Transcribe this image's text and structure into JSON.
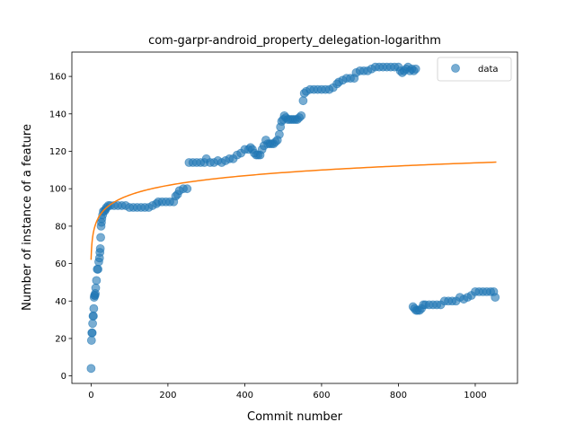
{
  "chart_data": {
    "type": "scatter",
    "title": "com-garpr-android_property_delegation-logarithm",
    "xlabel": "Commit number",
    "ylabel": "Number of instance of a feature",
    "xlim": [
      -50,
      1110
    ],
    "ylim": [
      -4,
      173
    ],
    "xticks": [
      0,
      200,
      400,
      600,
      800,
      1000
    ],
    "yticks": [
      0,
      20,
      40,
      60,
      80,
      100,
      120,
      140,
      160
    ],
    "legend": {
      "position": "top-right",
      "entries": [
        "data"
      ]
    },
    "colors": {
      "data": "#1f77b4",
      "fit": "#ff7f0e"
    },
    "series": [
      {
        "name": "data",
        "kind": "scatter",
        "points": [
          [
            0,
            4
          ],
          [
            1,
            19
          ],
          [
            2,
            23
          ],
          [
            3,
            23
          ],
          [
            4,
            28
          ],
          [
            5,
            32
          ],
          [
            6,
            32
          ],
          [
            7,
            36
          ],
          [
            8,
            42
          ],
          [
            9,
            43
          ],
          [
            10,
            43
          ],
          [
            11,
            44
          ],
          [
            12,
            47
          ],
          [
            14,
            51
          ],
          [
            16,
            57
          ],
          [
            18,
            57
          ],
          [
            20,
            61
          ],
          [
            22,
            63
          ],
          [
            23,
            66
          ],
          [
            24,
            68
          ],
          [
            25,
            74
          ],
          [
            26,
            80
          ],
          [
            27,
            82
          ],
          [
            28,
            84
          ],
          [
            30,
            86
          ],
          [
            32,
            88
          ],
          [
            35,
            88
          ],
          [
            38,
            89
          ],
          [
            40,
            90
          ],
          [
            45,
            91
          ],
          [
            50,
            91
          ],
          [
            60,
            91
          ],
          [
            70,
            91
          ],
          [
            80,
            91
          ],
          [
            90,
            91
          ],
          [
            100,
            90
          ],
          [
            110,
            90
          ],
          [
            120,
            90
          ],
          [
            130,
            90
          ],
          [
            140,
            90
          ],
          [
            150,
            90
          ],
          [
            160,
            91
          ],
          [
            170,
            92
          ],
          [
            175,
            93
          ],
          [
            185,
            93
          ],
          [
            195,
            93
          ],
          [
            205,
            93
          ],
          [
            215,
            93
          ],
          [
            220,
            96
          ],
          [
            225,
            97
          ],
          [
            230,
            99
          ],
          [
            240,
            100
          ],
          [
            250,
            100
          ],
          [
            255,
            114
          ],
          [
            265,
            114
          ],
          [
            275,
            114
          ],
          [
            285,
            114
          ],
          [
            295,
            114
          ],
          [
            300,
            116
          ],
          [
            310,
            114
          ],
          [
            320,
            114
          ],
          [
            330,
            115
          ],
          [
            340,
            114
          ],
          [
            350,
            115
          ],
          [
            360,
            116
          ],
          [
            370,
            116
          ],
          [
            380,
            118
          ],
          [
            390,
            119
          ],
          [
            400,
            121
          ],
          [
            410,
            121
          ],
          [
            415,
            122
          ],
          [
            420,
            121
          ],
          [
            425,
            119
          ],
          [
            430,
            118
          ],
          [
            435,
            118
          ],
          [
            440,
            118
          ],
          [
            445,
            121
          ],
          [
            450,
            123
          ],
          [
            455,
            126
          ],
          [
            460,
            124
          ],
          [
            465,
            124
          ],
          [
            470,
            124
          ],
          [
            475,
            124
          ],
          [
            480,
            125
          ],
          [
            485,
            126
          ],
          [
            490,
            129
          ],
          [
            493,
            133
          ],
          [
            496,
            136
          ],
          [
            500,
            137
          ],
          [
            503,
            139
          ],
          [
            507,
            138
          ],
          [
            512,
            137
          ],
          [
            517,
            137
          ],
          [
            522,
            137
          ],
          [
            527,
            137
          ],
          [
            532,
            137
          ],
          [
            537,
            137
          ],
          [
            542,
            138
          ],
          [
            547,
            139
          ],
          [
            552,
            147
          ],
          [
            555,
            151
          ],
          [
            560,
            152
          ],
          [
            570,
            153
          ],
          [
            580,
            153
          ],
          [
            590,
            153
          ],
          [
            600,
            153
          ],
          [
            610,
            153
          ],
          [
            620,
            153
          ],
          [
            630,
            154
          ],
          [
            640,
            156
          ],
          [
            645,
            157
          ],
          [
            655,
            158
          ],
          [
            665,
            159
          ],
          [
            675,
            159
          ],
          [
            685,
            159
          ],
          [
            690,
            162
          ],
          [
            700,
            163
          ],
          [
            710,
            163
          ],
          [
            720,
            163
          ],
          [
            730,
            164
          ],
          [
            740,
            165
          ],
          [
            750,
            165
          ],
          [
            760,
            165
          ],
          [
            770,
            165
          ],
          [
            780,
            165
          ],
          [
            790,
            165
          ],
          [
            800,
            165
          ],
          [
            805,
            163
          ],
          [
            810,
            162
          ],
          [
            815,
            163
          ],
          [
            820,
            164
          ],
          [
            825,
            165
          ],
          [
            830,
            163
          ],
          [
            835,
            164
          ],
          [
            840,
            163
          ],
          [
            845,
            164
          ],
          [
            838,
            37
          ],
          [
            842,
            36
          ],
          [
            846,
            35
          ],
          [
            850,
            35
          ],
          [
            855,
            35
          ],
          [
            860,
            36
          ],
          [
            865,
            38
          ],
          [
            870,
            38
          ],
          [
            880,
            38
          ],
          [
            890,
            38
          ],
          [
            900,
            38
          ],
          [
            910,
            38
          ],
          [
            920,
            40
          ],
          [
            930,
            40
          ],
          [
            940,
            40
          ],
          [
            950,
            40
          ],
          [
            960,
            42
          ],
          [
            970,
            41
          ],
          [
            980,
            42
          ],
          [
            990,
            43
          ],
          [
            1000,
            45
          ],
          [
            1010,
            45
          ],
          [
            1020,
            45
          ],
          [
            1030,
            45
          ],
          [
            1040,
            45
          ],
          [
            1048,
            45
          ],
          [
            1052,
            42
          ]
        ]
      },
      {
        "name": "",
        "kind": "line",
        "fit": {
          "type": "logarithm",
          "a": 62,
          "b": 7.5,
          "x_from": 0,
          "x_to": 1055
        }
      }
    ]
  }
}
